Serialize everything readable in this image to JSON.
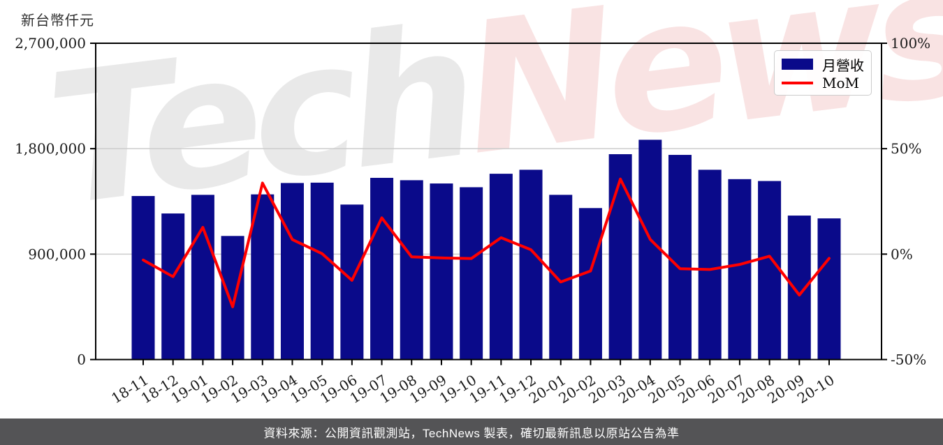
{
  "watermark": {
    "tech": "Tech",
    "news": "News"
  },
  "footer": {
    "text": "資料來源：公開資訊觀測站，TechNews 製表，確切最新訊息以原站公告為準",
    "background": "#545456",
    "text_color": "#ffffff"
  },
  "chart_data": {
    "type": "bar",
    "title": "",
    "ylabel": "新台幣仟元",
    "ylabel_right": "",
    "legend_position": "top-right",
    "grid": {
      "horizontal": true,
      "color": "#cccccc"
    },
    "categories": [
      "18-11",
      "18-12",
      "19-01",
      "19-02",
      "19-03",
      "19-04",
      "19-05",
      "19-06",
      "19-07",
      "19-08",
      "19-09",
      "19-10",
      "19-11",
      "19-12",
      "20-01",
      "20-02",
      "20-03",
      "20-04",
      "20-05",
      "20-06",
      "20-07",
      "20-08",
      "20-09",
      "20-10"
    ],
    "series": [
      {
        "name": "月營收",
        "type": "bar",
        "axis": "left",
        "color": "#0a0a8a",
        "unit": "新台幣仟元",
        "values": [
          1396000,
          1247000,
          1406000,
          1055000,
          1410000,
          1507000,
          1510000,
          1323000,
          1551000,
          1531000,
          1503000,
          1471000,
          1586000,
          1620000,
          1406000,
          1293000,
          1753000,
          1876000,
          1747000,
          1620000,
          1540000,
          1524000,
          1229000,
          1205000
        ]
      },
      {
        "name": "MoM",
        "type": "line",
        "axis": "right",
        "color": "#ff0000",
        "unit": "%",
        "values": [
          -2.8,
          -10.7,
          12.7,
          -25.0,
          33.7,
          6.9,
          0.2,
          -12.4,
          17.2,
          -1.3,
          -1.8,
          -2.1,
          7.8,
          2.1,
          -13.2,
          -8.0,
          35.6,
          7.0,
          -6.9,
          -7.3,
          -4.9,
          -1.0,
          -19.4,
          -2.0
        ]
      }
    ],
    "left_axis": {
      "min": 0,
      "max": 2700000,
      "ticks": [
        {
          "value": 0,
          "label": "0"
        },
        {
          "value": 900000,
          "label": "900,000"
        },
        {
          "value": 1800000,
          "label": "1,800,000"
        },
        {
          "value": 2700000,
          "label": "2,700,000"
        }
      ]
    },
    "right_axis": {
      "min": -50,
      "max": 100,
      "ticks": [
        {
          "value": -50,
          "label": "-50%"
        },
        {
          "value": 0,
          "label": "0%"
        },
        {
          "value": 50,
          "label": "50%"
        },
        {
          "value": 100,
          "label": "100%"
        }
      ]
    }
  }
}
